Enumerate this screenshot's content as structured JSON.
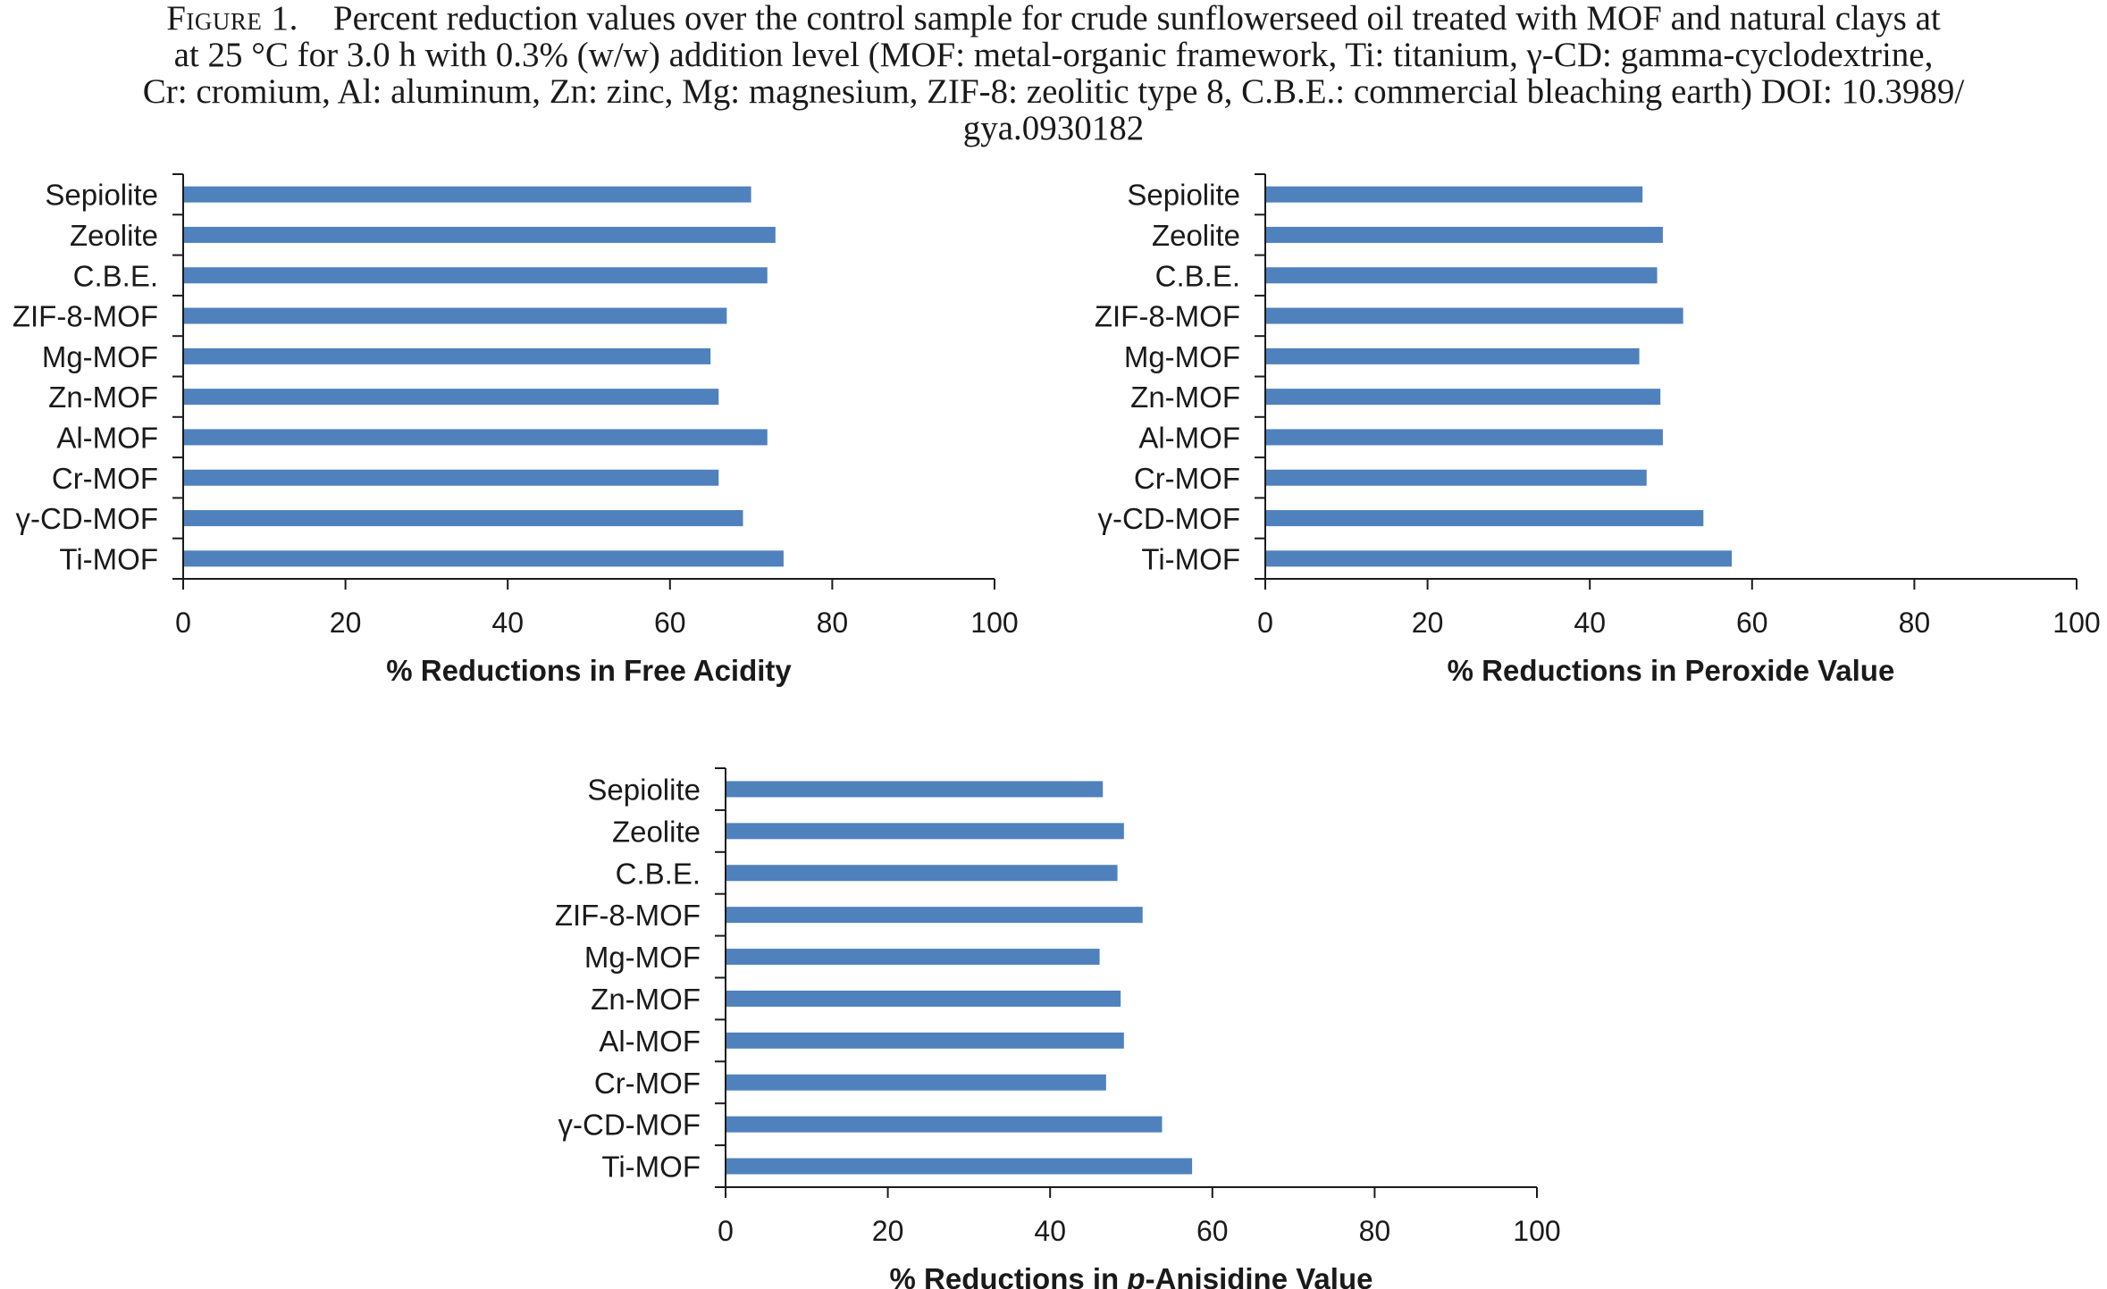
{
  "caption": {
    "label": "Figure 1.",
    "lines": [
      "Percent reduction values over the control sample for crude sunflowerseed oil treated with MOF and natural clays at",
      "at 25 °C for 3.0 h with 0.3% (w/w) addition level (MOF: metal-organic framework, Ti: titanium, γ-CD: gamma-cyclodextrine,",
      "Cr: cromium, Al: aluminum, Zn: zinc, Mg: magnesium, ZIF-8: zeolitic type 8, C.B.E.: commercial bleaching earth) DOI: 10.3989/",
      "gya.0930182"
    ]
  },
  "colors": {
    "bar": "#4f81bd",
    "axis": "#1a1a1a"
  },
  "chart_data": [
    {
      "type": "bar",
      "orientation": "horizontal",
      "categories": [
        "Sepiolite",
        "Zeolite",
        "C.B.E.",
        "ZIF-8-MOF",
        "Mg-MOF",
        "Zn-MOF",
        "Al-MOF",
        "Cr-MOF",
        "γ-CD-MOF",
        "Ti-MOF"
      ],
      "values": [
        70,
        73,
        72,
        67,
        65,
        66,
        72,
        66,
        69,
        74
      ],
      "xlabel": "% Reductions in Free Acidity",
      "xlim": [
        0,
        100
      ],
      "xticks": [
        "0",
        "20",
        "40",
        "60",
        "80",
        "100"
      ]
    },
    {
      "type": "bar",
      "orientation": "horizontal",
      "categories": [
        "Sepiolite",
        "Zeolite",
        "C.B.E.",
        "ZIF-8-MOF",
        "Mg-MOF",
        "Zn-MOF",
        "Al-MOF",
        "Cr-MOF",
        "γ-CD-MOF",
        "Ti-MOF"
      ],
      "values": [
        46.5,
        49,
        48.3,
        51.5,
        46.1,
        48.7,
        49,
        47,
        54,
        57.5
      ],
      "xlabel": "% Reductions in Peroxide Value",
      "xlim": [
        0,
        100
      ],
      "xticks": [
        "0",
        "20",
        "40",
        "60",
        "80",
        "100"
      ]
    },
    {
      "type": "bar",
      "orientation": "horizontal",
      "categories": [
        "Sepiolite",
        "Zeolite",
        "C.B.E.",
        "ZIF-8-MOF",
        "Mg-MOF",
        "Zn-MOF",
        "Al-MOF",
        "Cr-MOF",
        "γ-CD-MOF",
        "Ti-MOF"
      ],
      "values": [
        46.5,
        49.1,
        48.3,
        51.4,
        46.1,
        48.7,
        49.1,
        46.9,
        53.8,
        57.5
      ],
      "xlabel_prefix": "% Reductions in ",
      "xlabel_italic": "p",
      "xlabel_suffix": "-Anisidine Value",
      "xlim": [
        0,
        100
      ],
      "xticks": [
        "0",
        "20",
        "40",
        "60",
        "80",
        "100"
      ]
    }
  ]
}
